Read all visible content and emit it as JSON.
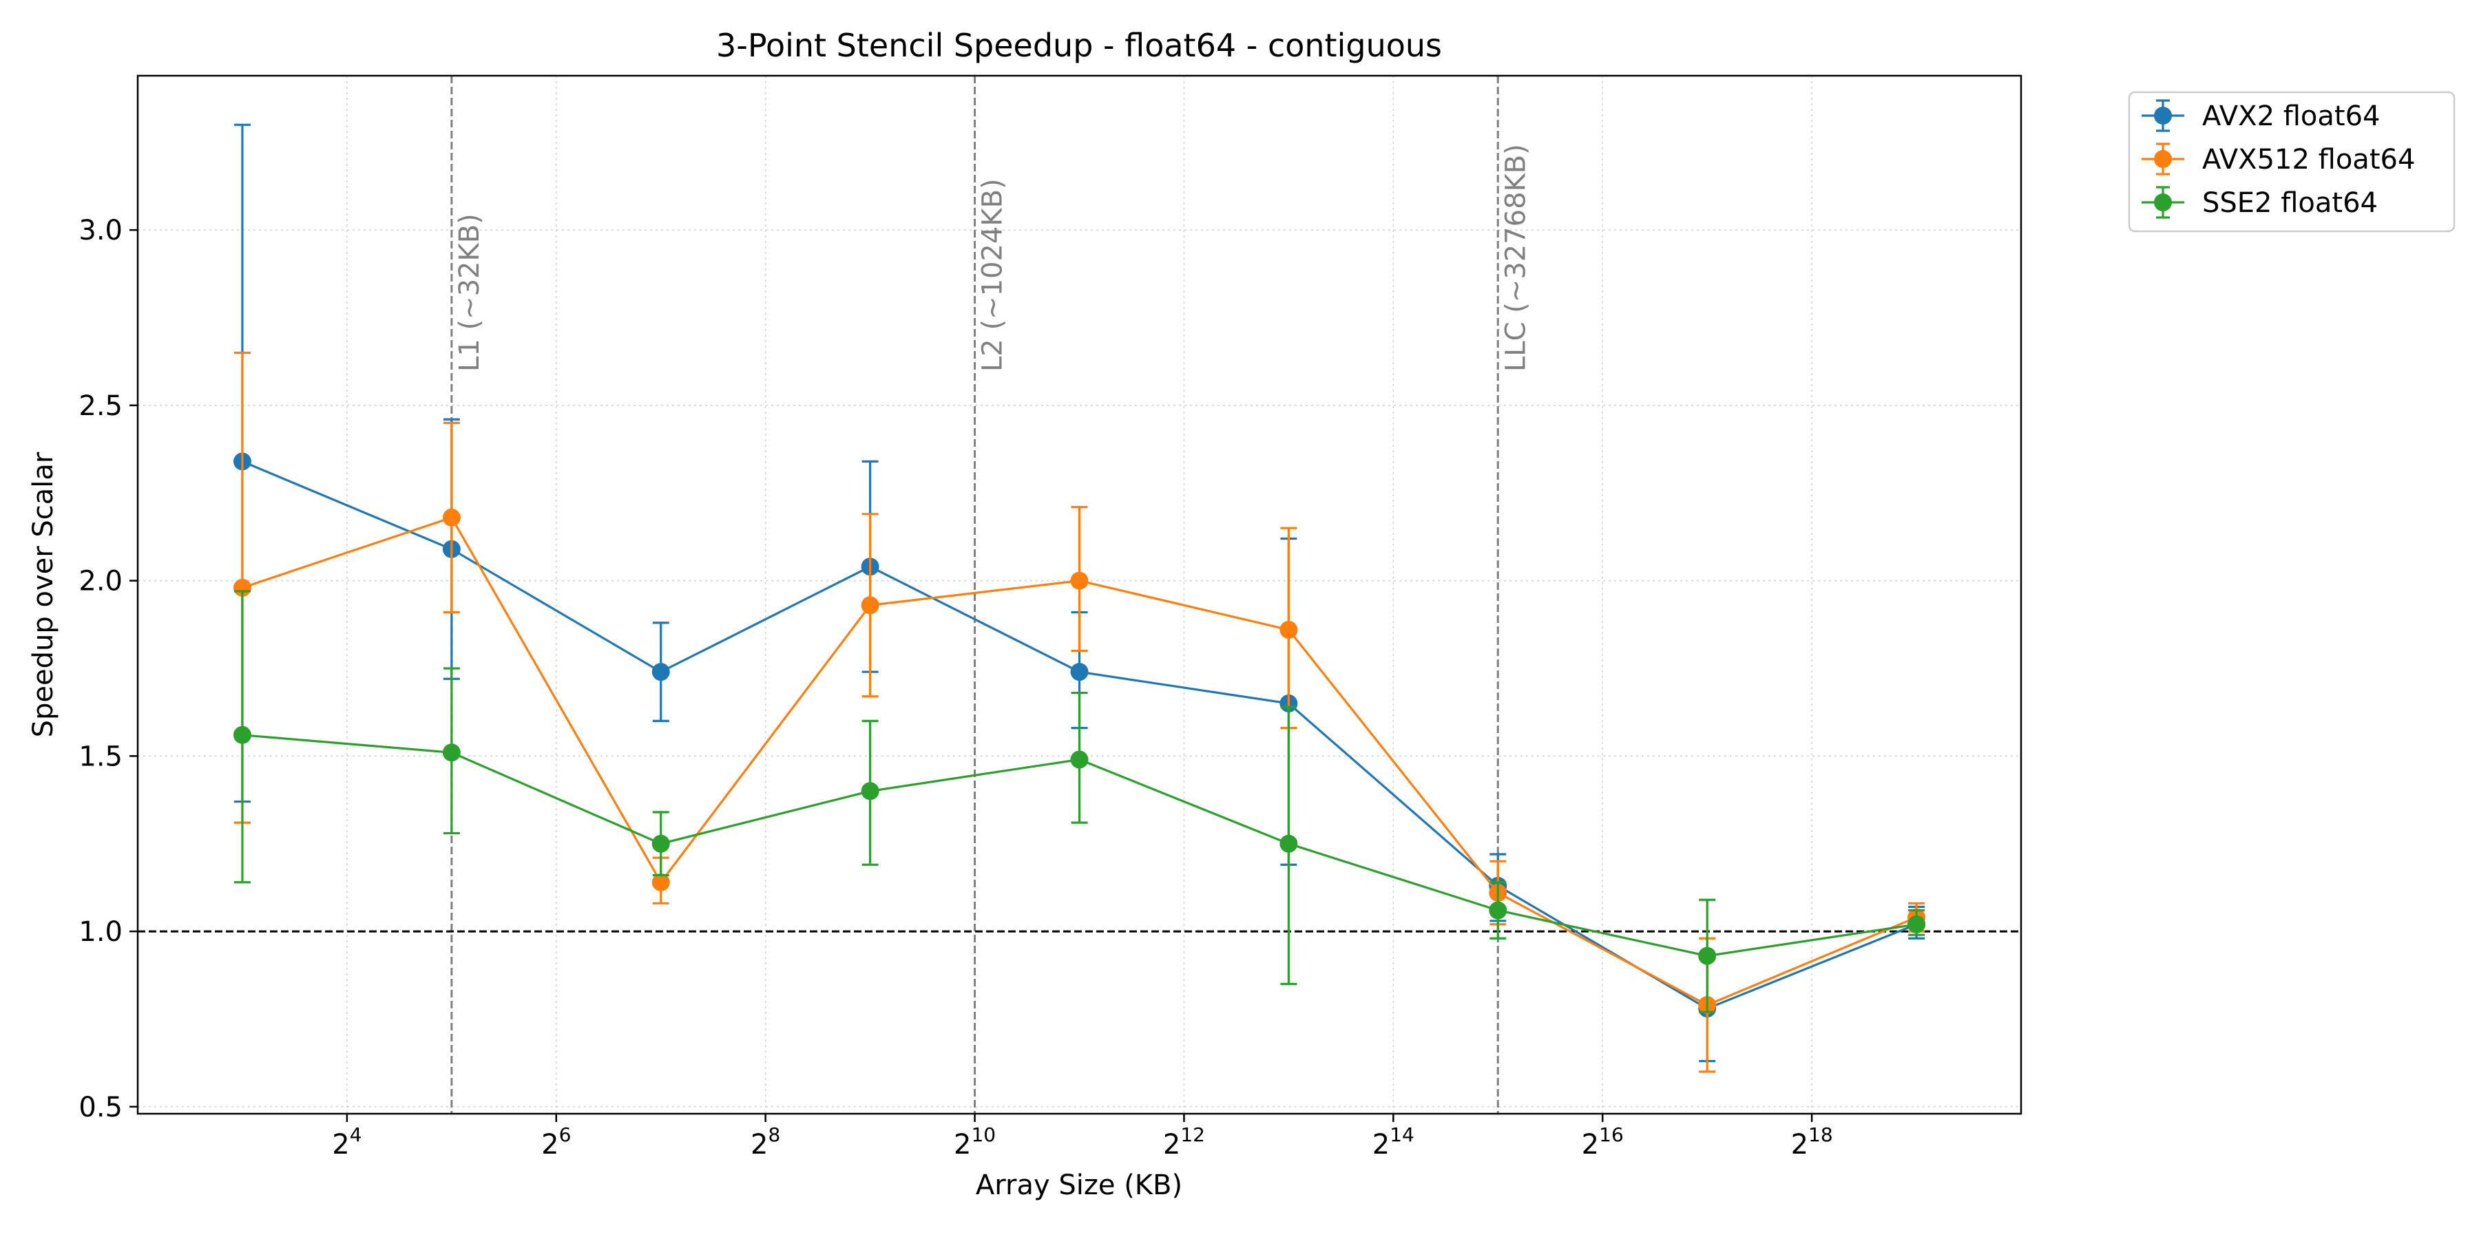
{
  "chart_data": {
    "type": "line",
    "title": "3-Point Stencil Speedup - float64 - contiguous",
    "xlabel": "Array Size (KB)",
    "ylabel": "Speedup over Scalar",
    "x_scale": "log2",
    "xlim": [
      4.0,
      1048576.0
    ],
    "ylim": [
      0.48,
      3.44
    ],
    "x": [
      8,
      32,
      128,
      512,
      2048,
      8192,
      32768,
      131072,
      524288
    ],
    "x_ticks": [
      {
        "value": 16,
        "label": "2",
        "exp": "4"
      },
      {
        "value": 64,
        "label": "2",
        "exp": "6"
      },
      {
        "value": 256,
        "label": "2",
        "exp": "8"
      },
      {
        "value": 1024,
        "label": "2",
        "exp": "10"
      },
      {
        "value": 4096,
        "label": "2",
        "exp": "12"
      },
      {
        "value": 16384,
        "label": "2",
        "exp": "14"
      },
      {
        "value": 65536,
        "label": "2",
        "exp": "16"
      },
      {
        "value": 262144,
        "label": "2",
        "exp": "18"
      }
    ],
    "y_ticks": [
      {
        "value": 0.5,
        "label": "0.5"
      },
      {
        "value": 1.0,
        "label": "1.0"
      },
      {
        "value": 1.5,
        "label": "1.5"
      },
      {
        "value": 2.0,
        "label": "2.0"
      },
      {
        "value": 2.5,
        "label": "2.5"
      },
      {
        "value": 3.0,
        "label": "3.0"
      }
    ],
    "grid": true,
    "legend_position": "outside-top-right",
    "reference_line": {
      "y": 1.0,
      "style": "dashed",
      "color": "#000000"
    },
    "cache_lines": [
      {
        "x": 32,
        "label": "L1 (~32KB)"
      },
      {
        "x": 1024,
        "label": "L2 (~1024KB)"
      },
      {
        "x": 32768,
        "label": "LLC (~32768KB)"
      }
    ],
    "series": [
      {
        "name": "AVX2 float64",
        "color": "#1f77b4",
        "values": [
          2.34,
          2.09,
          1.74,
          2.04,
          1.74,
          1.65,
          1.13,
          0.78,
          1.02
        ],
        "err_low": [
          1.37,
          1.72,
          1.6,
          1.74,
          1.58,
          1.19,
          1.03,
          0.63,
          0.98
        ],
        "err_high": [
          3.3,
          2.46,
          1.88,
          2.34,
          1.91,
          2.12,
          1.22,
          0.93,
          1.07
        ]
      },
      {
        "name": "AVX512 float64",
        "color": "#ff7f0e",
        "values": [
          1.98,
          2.18,
          1.14,
          1.93,
          2.0,
          1.86,
          1.11,
          0.79,
          1.04
        ],
        "err_low": [
          1.31,
          1.91,
          1.08,
          1.67,
          1.8,
          1.58,
          1.02,
          0.6,
          1.0
        ],
        "err_high": [
          2.65,
          2.45,
          1.21,
          2.19,
          2.21,
          2.15,
          1.2,
          0.98,
          1.08
        ]
      },
      {
        "name": "SSE2 float64",
        "color": "#2ca02c",
        "values": [
          1.56,
          1.51,
          1.25,
          1.4,
          1.49,
          1.25,
          1.06,
          0.93,
          1.02
        ],
        "err_low": [
          1.14,
          1.28,
          1.16,
          1.19,
          1.31,
          0.85,
          0.98,
          0.77,
          0.99
        ],
        "err_high": [
          1.97,
          1.75,
          1.34,
          1.6,
          1.68,
          1.64,
          1.14,
          1.09,
          1.06
        ]
      }
    ]
  }
}
